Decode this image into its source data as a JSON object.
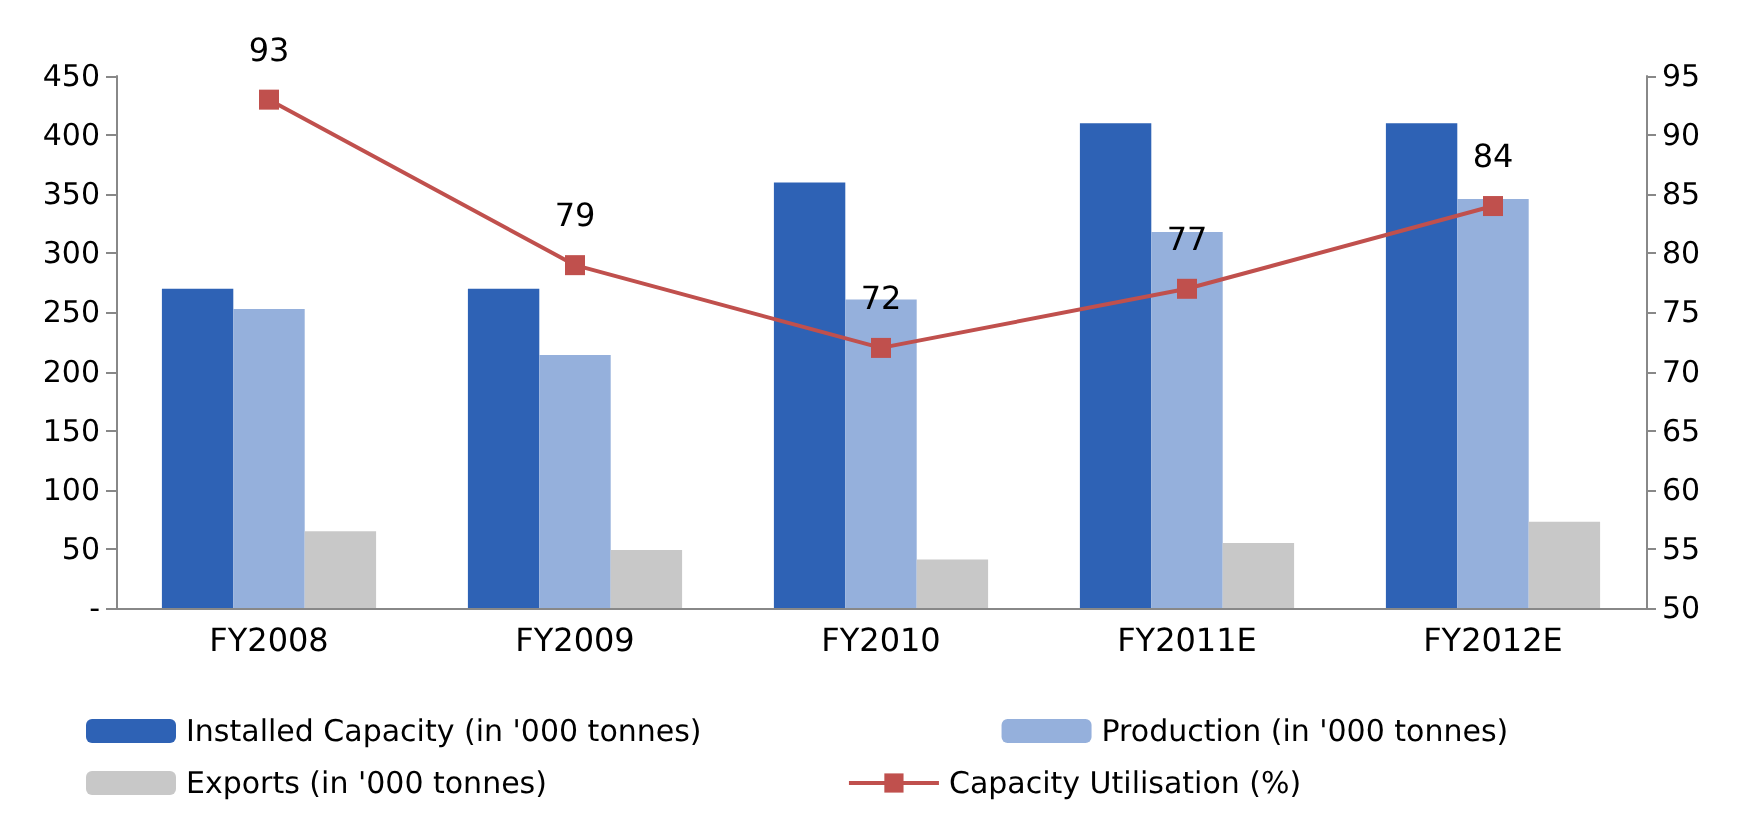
{
  "chart_data": {
    "type": "bar",
    "categories": [
      "FY2008",
      "FY2009",
      "FY2010",
      "FY2011E",
      "FY2012E"
    ],
    "series": [
      {
        "name": "Installed Capacity (in '000 tonnes)",
        "color": "#2e62b5",
        "values": [
          270,
          270,
          360,
          410,
          410
        ]
      },
      {
        "name": "Production (in '000 tonnes)",
        "color": "#95b0dc",
        "values": [
          253,
          214,
          261,
          318,
          346
        ]
      },
      {
        "name": "Exports (in '000 tonnes)",
        "color": "#c8c8c8",
        "values": [
          65,
          49,
          41,
          55,
          73
        ]
      },
      {
        "name": "Capacity Utilisation (%)",
        "type": "line",
        "axis": "y2",
        "color": "#c0504d",
        "values": [
          93,
          79,
          72,
          77,
          84
        ],
        "value_labels": [
          "93",
          "79",
          "72",
          "77",
          "84"
        ],
        "marker": "square"
      }
    ],
    "ylim": [
      0,
      450
    ],
    "yticks": [
      {
        "value": 0,
        "label": "-"
      },
      50,
      100,
      150,
      200,
      250,
      300,
      350,
      400,
      450
    ],
    "y2lim": [
      50,
      95
    ],
    "y2ticks": [
      50,
      55,
      60,
      65,
      70,
      75,
      80,
      85,
      90,
      95
    ],
    "grid": false,
    "legend": "bottom"
  }
}
